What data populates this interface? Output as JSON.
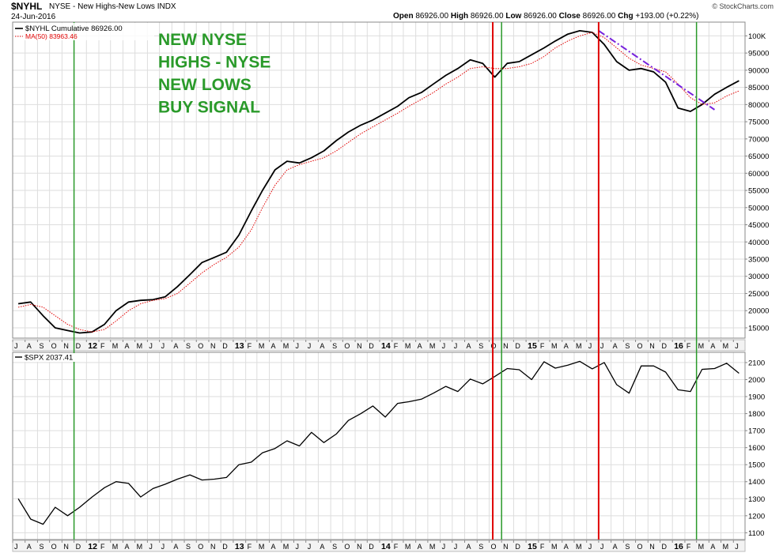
{
  "header": {
    "symbol": "$NYHL",
    "description": "NYSE - New Highs-New Lows  INDX",
    "date": "24-Jun-2016",
    "open_label": "Open",
    "open": "86926.00",
    "high_label": "High",
    "high": "86926.00",
    "low_label": "Low",
    "low": "86926.00",
    "close_label": "Close",
    "close": "86926.00",
    "chg_label": "Chg",
    "chg": "+193.00 (+0.22%)",
    "credit": "© StockCharts.com"
  },
  "colors": {
    "price_line": "#000000",
    "ma_line": "#e00000",
    "signal_red": "#e00000",
    "signal_green": "#2a9a2a",
    "annotation_text": "#2a9a2a",
    "trendline": "#7722dd",
    "grid": "#dddddd"
  },
  "annotation": [
    "NEW NYSE",
    "HIGHS - NYSE",
    "NEW LOWS",
    "BUY SIGNAL"
  ],
  "x_axis_labels": [
    "J",
    "A",
    "S",
    "O",
    "N",
    "D",
    "12",
    "F",
    "M",
    "A",
    "M",
    "J",
    "J",
    "A",
    "S",
    "O",
    "N",
    "D",
    "13",
    "F",
    "M",
    "A",
    "M",
    "J",
    "J",
    "A",
    "S",
    "O",
    "N",
    "D",
    "14",
    "F",
    "M",
    "A",
    "M",
    "J",
    "J",
    "A",
    "S",
    "O",
    "N",
    "D",
    "15",
    "F",
    "M",
    "A",
    "M",
    "J",
    "J",
    "A",
    "S",
    "O",
    "N",
    "D",
    "16",
    "F",
    "M",
    "A",
    "M",
    "J"
  ],
  "chart_data": [
    {
      "type": "line",
      "title": "$NYHL NYSE - New Highs-New Lows",
      "legend": [
        {
          "name": "$NYHL Cumulative 86926.00",
          "color": "#000000",
          "style": "solid"
        },
        {
          "name": "MA(50) 83963.46",
          "color": "#e00000",
          "style": "dotted"
        }
      ],
      "x_range": [
        "2011-07",
        "2016-06-24"
      ],
      "ylim": [
        12000,
        104000
      ],
      "y_ticks": [
        15000,
        20000,
        25000,
        30000,
        35000,
        40000,
        45000,
        50000,
        55000,
        60000,
        65000,
        70000,
        75000,
        80000,
        85000,
        90000,
        95000,
        100000
      ],
      "y_tick_labels": [
        "15000",
        "20000",
        "25000",
        "30000",
        "35000",
        "40000",
        "45000",
        "50000",
        "55000",
        "60000",
        "65000",
        "70000",
        "75000",
        "80000",
        "85000",
        "90000",
        "95000",
        "100K"
      ],
      "series": [
        {
          "name": "$NYHL Cumulative",
          "x": [
            "2011-07",
            "2011-08",
            "2011-09",
            "2011-10",
            "2011-11",
            "2011-12",
            "2012-01",
            "2012-02",
            "2012-03",
            "2012-04",
            "2012-05",
            "2012-06",
            "2012-07",
            "2012-08",
            "2012-09",
            "2012-10",
            "2012-11",
            "2012-12",
            "2013-01",
            "2013-02",
            "2013-03",
            "2013-04",
            "2013-05",
            "2013-06",
            "2013-07",
            "2013-08",
            "2013-09",
            "2013-10",
            "2013-11",
            "2013-12",
            "2014-01",
            "2014-02",
            "2014-03",
            "2014-04",
            "2014-05",
            "2014-06",
            "2014-07",
            "2014-08",
            "2014-09",
            "2014-10",
            "2014-11",
            "2014-12",
            "2015-01",
            "2015-02",
            "2015-03",
            "2015-04",
            "2015-05",
            "2015-06",
            "2015-07",
            "2015-08",
            "2015-09",
            "2015-10",
            "2015-11",
            "2015-12",
            "2016-01",
            "2016-02",
            "2016-03",
            "2016-04",
            "2016-05",
            "2016-06"
          ],
          "y": [
            22000,
            22500,
            18500,
            15000,
            14200,
            13500,
            13800,
            16000,
            20000,
            22500,
            23000,
            23200,
            24000,
            27000,
            30500,
            34000,
            35500,
            37000,
            42000,
            49000,
            55000,
            61000,
            63500,
            63000,
            64500,
            66500,
            69500,
            72000,
            74000,
            75500,
            77500,
            79500,
            82000,
            83500,
            86000,
            88500,
            90500,
            93000,
            92000,
            88000,
            92000,
            92500,
            94500,
            96500,
            98500,
            100500,
            101500,
            101000,
            97500,
            92500,
            90000,
            90500,
            89500,
            86500,
            79000,
            78000,
            80000,
            83000,
            85000,
            86926
          ]
        },
        {
          "name": "MA(50)",
          "x": [
            "2011-07",
            "2011-08",
            "2011-09",
            "2011-10",
            "2011-11",
            "2011-12",
            "2012-01",
            "2012-02",
            "2012-03",
            "2012-04",
            "2012-05",
            "2012-06",
            "2012-07",
            "2012-08",
            "2012-09",
            "2012-10",
            "2012-11",
            "2012-12",
            "2013-01",
            "2013-02",
            "2013-03",
            "2013-04",
            "2013-05",
            "2013-06",
            "2013-07",
            "2013-08",
            "2013-09",
            "2013-10",
            "2013-11",
            "2013-12",
            "2014-01",
            "2014-02",
            "2014-03",
            "2014-04",
            "2014-05",
            "2014-06",
            "2014-07",
            "2014-08",
            "2014-09",
            "2014-10",
            "2014-11",
            "2014-12",
            "2015-01",
            "2015-02",
            "2015-03",
            "2015-04",
            "2015-05",
            "2015-06",
            "2015-07",
            "2015-08",
            "2015-09",
            "2015-10",
            "2015-11",
            "2015-12",
            "2016-01",
            "2016-02",
            "2016-03",
            "2016-04",
            "2016-05",
            "2016-06"
          ],
          "y": [
            21000,
            21800,
            21000,
            18500,
            16000,
            14500,
            13800,
            14500,
            17000,
            20000,
            22000,
            23000,
            23500,
            25000,
            28000,
            31000,
            33500,
            35500,
            38500,
            43500,
            50000,
            56500,
            61000,
            62500,
            63500,
            64500,
            66500,
            69000,
            71500,
            73500,
            75500,
            77500,
            79500,
            81500,
            83500,
            86000,
            88000,
            90500,
            91000,
            90500,
            90500,
            91000,
            92000,
            94000,
            96500,
            98500,
            100000,
            101000,
            99500,
            96500,
            93500,
            91500,
            90500,
            89500,
            86000,
            82000,
            80000,
            80500,
            82500,
            83963
          ]
        }
      ]
    },
    {
      "type": "line",
      "title": "$SPX",
      "legend": [
        {
          "name": "$SPX 2037.41",
          "color": "#000000",
          "style": "solid"
        }
      ],
      "x_range": [
        "2011-07",
        "2016-06-24"
      ],
      "ylim": [
        1060,
        2160
      ],
      "y_ticks": [
        1100,
        1200,
        1300,
        1400,
        1500,
        1600,
        1700,
        1800,
        1900,
        2000,
        2100
      ],
      "y_tick_labels": [
        "1100",
        "1200",
        "1300",
        "1400",
        "1500",
        "1600",
        "1700",
        "1800",
        "1900",
        "2000",
        "2100"
      ],
      "series": [
        {
          "name": "$SPX",
          "x": [
            "2011-07",
            "2011-08",
            "2011-09",
            "2011-10",
            "2011-11",
            "2011-12",
            "2012-01",
            "2012-02",
            "2012-03",
            "2012-04",
            "2012-05",
            "2012-06",
            "2012-07",
            "2012-08",
            "2012-09",
            "2012-10",
            "2012-11",
            "2012-12",
            "2013-01",
            "2013-02",
            "2013-03",
            "2013-04",
            "2013-05",
            "2013-06",
            "2013-07",
            "2013-08",
            "2013-09",
            "2013-10",
            "2013-11",
            "2013-12",
            "2014-01",
            "2014-02",
            "2014-03",
            "2014-04",
            "2014-05",
            "2014-06",
            "2014-07",
            "2014-08",
            "2014-09",
            "2014-10",
            "2014-11",
            "2014-12",
            "2015-01",
            "2015-02",
            "2015-03",
            "2015-04",
            "2015-05",
            "2015-06",
            "2015-07",
            "2015-08",
            "2015-09",
            "2015-10",
            "2015-11",
            "2015-12",
            "2016-01",
            "2016-02",
            "2016-03",
            "2016-04",
            "2016-05",
            "2016-06"
          ],
          "y": [
            1300,
            1180,
            1150,
            1250,
            1200,
            1250,
            1310,
            1365,
            1400,
            1390,
            1310,
            1360,
            1385,
            1415,
            1440,
            1410,
            1415,
            1425,
            1500,
            1515,
            1570,
            1595,
            1640,
            1610,
            1690,
            1630,
            1680,
            1760,
            1800,
            1845,
            1780,
            1860,
            1870,
            1885,
            1920,
            1960,
            1930,
            2003,
            1975,
            2018,
            2065,
            2058,
            2000,
            2105,
            2067,
            2085,
            2107,
            2063,
            2100,
            1970,
            1920,
            2080,
            2080,
            2044,
            1940,
            1930,
            2060,
            2065,
            2096,
            2037
          ]
        }
      ]
    }
  ],
  "signals": [
    {
      "date": "2011-12-01",
      "color": "green"
    },
    {
      "date": "2014-10-10",
      "color": "red"
    },
    {
      "date": "2014-11-01",
      "color": "green"
    },
    {
      "date": "2015-07-01",
      "color": "red"
    },
    {
      "date": "2016-03-01",
      "color": "green"
    }
  ],
  "trendline": {
    "start": {
      "date": "2015-07-01",
      "value": 101500
    },
    "end": {
      "date": "2016-04-15",
      "value": 78500
    }
  }
}
